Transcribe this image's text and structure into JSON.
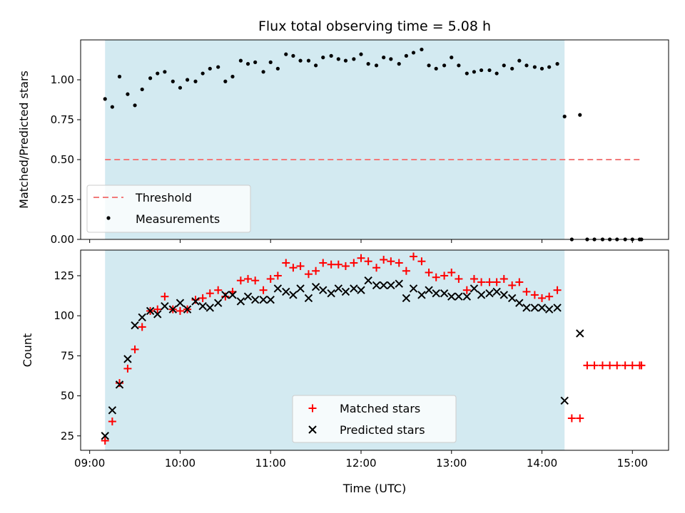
{
  "colors": {
    "shade": "#d3eaf1",
    "threshold": "#f27a7a",
    "measurement": "#000000",
    "matched": "#ff0000",
    "predicted": "#000000"
  },
  "chart_data": [
    {
      "type": "scatter",
      "title": "Flux total observing time = 5.08 h",
      "xlabel": "",
      "ylabel": "Matched/Predicted stars",
      "x_unit": "hours (UTC)",
      "xlim": [
        8.9,
        15.4
      ],
      "ylim": [
        0,
        1.25
      ],
      "yticks": [
        0.0,
        0.25,
        0.5,
        0.75,
        1.0
      ],
      "ytick_labels": [
        "0.00",
        "0.25",
        "0.50",
        "0.75",
        "1.00"
      ],
      "shaded_span": [
        9.17,
        14.25
      ],
      "threshold": {
        "name": "Threshold",
        "value": 0.5,
        "x_range": [
          9.17,
          15.1
        ]
      },
      "series": [
        {
          "name": "Measurements",
          "x": [
            9.17,
            9.25,
            9.33,
            9.42,
            9.5,
            9.58,
            9.67,
            9.75,
            9.83,
            9.92,
            10.0,
            10.08,
            10.17,
            10.25,
            10.33,
            10.42,
            10.5,
            10.58,
            10.67,
            10.75,
            10.83,
            10.92,
            11.0,
            11.08,
            11.17,
            11.25,
            11.33,
            11.42,
            11.5,
            11.58,
            11.67,
            11.75,
            11.83,
            11.92,
            12.0,
            12.08,
            12.17,
            12.25,
            12.33,
            12.42,
            12.5,
            12.58,
            12.67,
            12.75,
            12.83,
            12.92,
            13.0,
            13.08,
            13.17,
            13.25,
            13.33,
            13.42,
            13.5,
            13.58,
            13.67,
            13.75,
            13.83,
            13.92,
            14.0,
            14.08,
            14.17,
            14.25,
            14.33,
            14.42,
            14.5,
            14.58,
            14.67,
            14.75,
            14.83,
            14.92,
            15.0,
            15.08,
            15.1
          ],
          "y": [
            0.88,
            0.83,
            1.02,
            0.91,
            0.84,
            0.94,
            1.01,
            1.04,
            1.05,
            0.99,
            0.95,
            1.0,
            0.99,
            1.04,
            1.07,
            1.08,
            0.99,
            1.02,
            1.12,
            1.1,
            1.11,
            1.05,
            1.11,
            1.07,
            1.16,
            1.15,
            1.12,
            1.12,
            1.09,
            1.14,
            1.15,
            1.13,
            1.12,
            1.13,
            1.16,
            1.1,
            1.09,
            1.14,
            1.13,
            1.1,
            1.15,
            1.17,
            1.19,
            1.09,
            1.07,
            1.09,
            1.14,
            1.09,
            1.04,
            1.05,
            1.06,
            1.06,
            1.04,
            1.09,
            1.07,
            1.12,
            1.09,
            1.08,
            1.07,
            1.08,
            1.1,
            0.77,
            0.0,
            0.78,
            0.0,
            0.0,
            0.0,
            0.0,
            0.0,
            0.0,
            0.0,
            0.0,
            0.0
          ]
        }
      ],
      "legend": {
        "placement": "lower-left",
        "entries": [
          "Threshold",
          "Measurements"
        ]
      }
    },
    {
      "type": "scatter",
      "title": "",
      "xlabel": "Time (UTC)",
      "ylabel": "Count",
      "x_unit": "hours (UTC)",
      "xlim": [
        8.9,
        15.4
      ],
      "ylim": [
        16,
        141
      ],
      "xticks": [
        9,
        10,
        11,
        12,
        13,
        14,
        15
      ],
      "xtick_labels": [
        "09:00",
        "10:00",
        "11:00",
        "12:00",
        "13:00",
        "14:00",
        "15:00"
      ],
      "yticks": [
        25,
        50,
        75,
        100,
        125
      ],
      "ytick_labels": [
        "25",
        "50",
        "75",
        "100",
        "125"
      ],
      "shaded_span": [
        9.17,
        14.25
      ],
      "series": [
        {
          "name": "Matched stars",
          "marker": "plus",
          "x": [
            9.17,
            9.25,
            9.33,
            9.42,
            9.5,
            9.58,
            9.67,
            9.75,
            9.83,
            9.92,
            10.0,
            10.08,
            10.17,
            10.25,
            10.33,
            10.42,
            10.5,
            10.58,
            10.67,
            10.75,
            10.83,
            10.92,
            11.0,
            11.08,
            11.17,
            11.25,
            11.33,
            11.42,
            11.5,
            11.58,
            11.67,
            11.75,
            11.83,
            11.92,
            12.0,
            12.08,
            12.17,
            12.25,
            12.33,
            12.42,
            12.5,
            12.58,
            12.67,
            12.75,
            12.83,
            12.92,
            13.0,
            13.08,
            13.17,
            13.25,
            13.33,
            13.42,
            13.5,
            13.58,
            13.67,
            13.75,
            13.83,
            13.92,
            14.0,
            14.08,
            14.17,
            14.33,
            14.42,
            14.5,
            14.58,
            14.67,
            14.75,
            14.83,
            14.92,
            15.0,
            15.08,
            15.1
          ],
          "y": [
            22,
            34,
            58,
            67,
            79,
            93,
            103,
            104,
            112,
            104,
            103,
            104,
            110,
            111,
            114,
            116,
            112,
            115,
            122,
            123,
            122,
            116,
            123,
            125,
            133,
            130,
            131,
            126,
            128,
            133,
            132,
            132,
            131,
            133,
            136,
            134,
            130,
            135,
            134,
            133,
            128,
            137,
            134,
            127,
            124,
            125,
            127,
            123,
            116,
            123,
            121,
            121,
            121,
            123,
            119,
            121,
            115,
            113,
            111,
            112,
            116,
            36,
            36,
            69,
            69,
            69,
            69,
            69,
            69,
            69,
            69,
            69
          ]
        },
        {
          "name": "Predicted stars",
          "marker": "x",
          "x": [
            9.17,
            9.25,
            9.33,
            9.42,
            9.5,
            9.58,
            9.67,
            9.75,
            9.83,
            9.92,
            10.0,
            10.08,
            10.17,
            10.25,
            10.33,
            10.42,
            10.5,
            10.58,
            10.67,
            10.75,
            10.83,
            10.92,
            11.0,
            11.08,
            11.17,
            11.25,
            11.33,
            11.42,
            11.5,
            11.58,
            11.67,
            11.75,
            11.83,
            11.92,
            12.0,
            12.08,
            12.17,
            12.25,
            12.33,
            12.42,
            12.5,
            12.58,
            12.67,
            12.75,
            12.83,
            12.92,
            13.0,
            13.08,
            13.17,
            13.25,
            13.33,
            13.42,
            13.5,
            13.58,
            13.67,
            13.75,
            13.83,
            13.92,
            14.0,
            14.08,
            14.17,
            14.25,
            14.42
          ],
          "y": [
            25,
            41,
            57,
            73,
            94,
            99,
            103,
            101,
            106,
            104,
            108,
            104,
            109,
            106,
            105,
            108,
            113,
            113,
            109,
            112,
            110,
            110,
            110,
            117,
            115,
            113,
            117,
            111,
            118,
            116,
            114,
            117,
            115,
            117,
            116,
            122,
            119,
            119,
            119,
            120,
            111,
            117,
            113,
            116,
            114,
            114,
            112,
            112,
            112,
            117,
            113,
            114,
            115,
            113,
            111,
            108,
            105,
            105,
            105,
            104,
            105,
            47,
            89
          ]
        }
      ],
      "legend": {
        "placement": "lower-center",
        "entries": [
          "Matched stars",
          "Predicted stars"
        ]
      }
    }
  ]
}
